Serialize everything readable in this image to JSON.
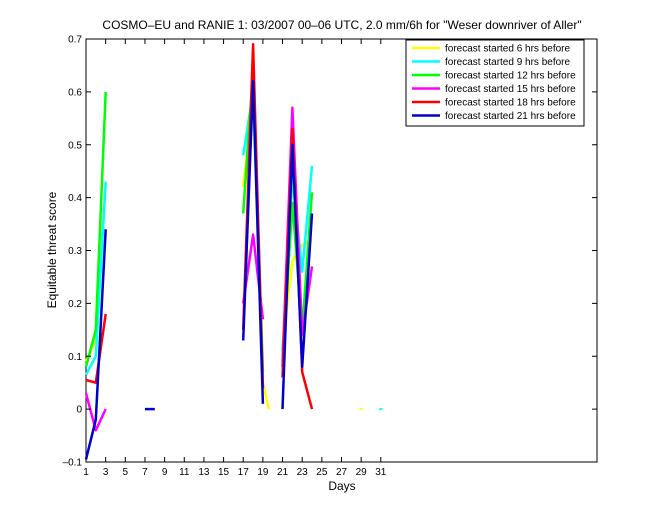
{
  "chart_data": {
    "type": "line",
    "title": "COSMO–EU and RANIE 1: 03/2007 00–06 UTC, 2.0 mm/6h for \"Weser downriver of Aller\"",
    "xlabel": "Days",
    "ylabel": "Equitable threat score",
    "xlim": [
      1,
      53
    ],
    "ylim": [
      -0.1,
      0.7
    ],
    "x_ticks": [
      1,
      3,
      5,
      7,
      9,
      11,
      13,
      15,
      17,
      19,
      21,
      23,
      25,
      27,
      29,
      31
    ],
    "y_ticks": [
      -0.1,
      0,
      0.1,
      0.2,
      0.3,
      0.4,
      0.5,
      0.6,
      0.7
    ],
    "y_tick_labels": [
      "–0.1",
      "0",
      "0.1",
      "0.2",
      "0.3",
      "0.4",
      "0.5",
      "0.6",
      "0.7"
    ],
    "legend_position": "top-right",
    "grid": false,
    "series": [
      {
        "name": "forecast started 6 hrs before",
        "color": "#ffff00",
        "segments": [
          [
            [
              1,
              0.09
            ],
            [
              2,
              0.13
            ],
            [
              3,
              0.43
            ]
          ],
          [
            [
              17,
              0.42
            ],
            [
              18,
              0.58
            ],
            [
              19,
              0.05
            ],
            [
              19.6,
              0.0
            ]
          ],
          [
            [
              21,
              0.12
            ],
            [
              22,
              0.28
            ],
            [
              23,
              0.31
            ],
            [
              24,
              0.32
            ]
          ],
          [
            [
              29,
              0.0
            ]
          ]
        ]
      },
      {
        "name": "forecast started 9 hrs before",
        "color": "#00ffff",
        "segments": [
          [
            [
              1,
              0.065
            ],
            [
              2,
              0.1
            ],
            [
              3,
              0.43
            ]
          ],
          [
            [
              17,
              0.48
            ],
            [
              18,
              0.6
            ],
            [
              19,
              0.06
            ]
          ],
          [
            [
              21,
              0.11
            ],
            [
              22,
              0.44
            ],
            [
              23,
              0.26
            ],
            [
              24,
              0.46
            ]
          ],
          [
            [
              31,
              0.0
            ]
          ]
        ]
      },
      {
        "name": "forecast started 12 hrs before",
        "color": "#00ff00",
        "segments": [
          [
            [
              1,
              0.08
            ],
            [
              2,
              0.15
            ],
            [
              3,
              0.6
            ]
          ],
          [
            [
              17,
              0.37
            ],
            [
              18,
              0.64
            ],
            [
              19,
              0.07
            ]
          ],
          [
            [
              21,
              0.09
            ],
            [
              22,
              0.39
            ],
            [
              23,
              0.15
            ],
            [
              24,
              0.41
            ]
          ]
        ]
      },
      {
        "name": "forecast started 15 hrs before",
        "color": "#ff00ff",
        "segments": [
          [
            [
              1,
              0.03
            ],
            [
              2,
              -0.04
            ],
            [
              3,
              0.0
            ]
          ],
          [
            [
              17,
              0.2
            ],
            [
              18,
              0.33
            ],
            [
              19,
              0.17
            ]
          ],
          [
            [
              21,
              0.08
            ],
            [
              22,
              0.57
            ],
            [
              23,
              0.14
            ],
            [
              24,
              0.27
            ]
          ]
        ]
      },
      {
        "name": "forecast started 18 hrs before",
        "color": "#ff0000",
        "segments": [
          [
            [
              1,
              0.055
            ],
            [
              2,
              0.05
            ],
            [
              3,
              0.18
            ]
          ],
          [
            [
              17,
              0.15
            ],
            [
              18,
              0.69
            ],
            [
              19,
              0.04
            ]
          ],
          [
            [
              21,
              0.06
            ],
            [
              22,
              0.53
            ],
            [
              23,
              0.07
            ],
            [
              24,
              0.0
            ]
          ]
        ]
      },
      {
        "name": "forecast started 21 hrs before",
        "color": "#0000cc",
        "segments": [
          [
            [
              1,
              -0.095
            ],
            [
              2,
              -0.02
            ],
            [
              3,
              0.34
            ]
          ],
          [
            [
              7,
              0.0
            ],
            [
              8,
              0.0
            ]
          ],
          [
            [
              17,
              0.13
            ],
            [
              18,
              0.62
            ],
            [
              19,
              0.01
            ]
          ],
          [
            [
              21,
              0.0
            ],
            [
              22,
              0.5
            ],
            [
              23,
              0.08
            ],
            [
              24,
              0.37
            ]
          ]
        ]
      }
    ]
  }
}
